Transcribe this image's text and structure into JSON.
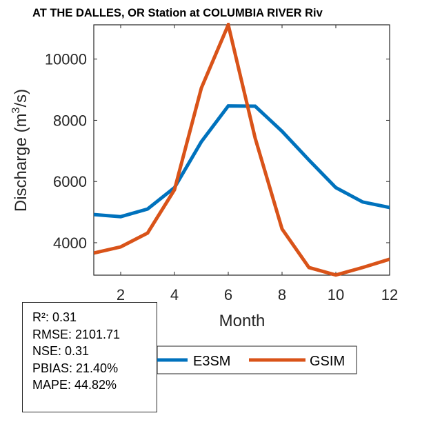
{
  "chart_data": {
    "type": "line",
    "title": "AT THE DALLES, OR  Station at  COLUMBIA RIVER  River",
    "title_visible": "AT THE DALLES, OR  Station at  COLUMBIA RIVER  Riv",
    "xlabel": "Month",
    "ylabel_prefix": "Discharge (m",
    "ylabel_sup": "3",
    "ylabel_suffix": "/s)",
    "xlim": [
      1,
      12
    ],
    "ylim": [
      2940,
      11120
    ],
    "xticks": [
      2,
      4,
      6,
      8,
      10,
      12
    ],
    "yticks": [
      4000,
      6000,
      8000,
      10000
    ],
    "x": [
      1,
      2,
      3,
      4,
      5,
      6,
      7,
      8,
      9,
      10,
      11,
      12
    ],
    "series": [
      {
        "name": "E3SM",
        "color": "#0072BD",
        "values": [
          4920,
          4850,
          5100,
          5800,
          7300,
          8470,
          8460,
          7640,
          6700,
          5800,
          5330,
          5150
        ]
      },
      {
        "name": "GSIM",
        "color": "#D95319",
        "values": [
          3660,
          3865,
          4315,
          5730,
          9056,
          11120,
          7420,
          4450,
          3190,
          2945,
          3190,
          3460
        ]
      }
    ],
    "legend": {
      "placement": "bottom-center",
      "orientation": "horizontal",
      "entries": [
        "E3SM",
        "GSIM"
      ]
    },
    "grid": false
  },
  "stats": {
    "lines": [
      "R²: 0.31",
      "RMSE: 2101.71",
      "NSE: 0.31",
      "PBIAS: 21.40%",
      "MAPE: 44.82%"
    ]
  }
}
